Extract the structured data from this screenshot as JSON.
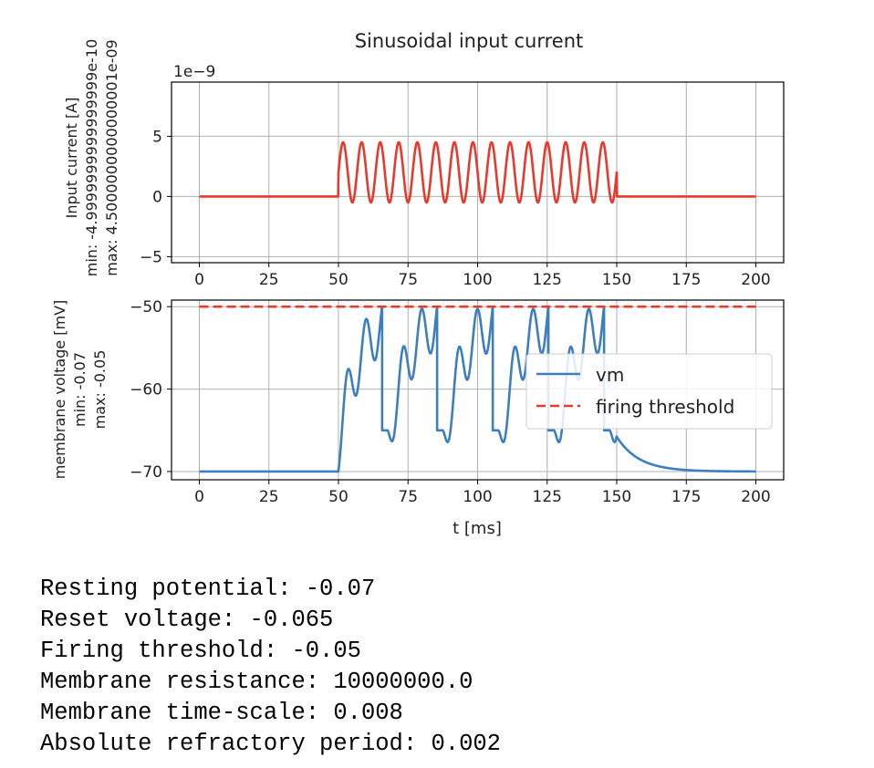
{
  "chart_data": [
    {
      "type": "line",
      "title": "Sinusoidal input current",
      "xlabel": "",
      "ylabel_lines": [
        "Input current [A]",
        "min: -4.9999999999999999e-10",
        "max: 4.5000000000000001e-09"
      ],
      "offset_text": "1e−9",
      "xlim": [
        -10,
        210
      ],
      "ylim": [
        -5.5,
        9.5
      ],
      "xticks": [
        0,
        25,
        50,
        75,
        100,
        125,
        150,
        175,
        200
      ],
      "xtick_labels": [
        "0",
        "25",
        "50",
        "75",
        "100",
        "125",
        "150",
        "175",
        "200"
      ],
      "yticks": [
        -5,
        0,
        5
      ],
      "ytick_labels": [
        "−5",
        "0",
        "5"
      ],
      "grid": true,
      "series": [
        {
          "color": "#e8392d",
          "signal": {
            "baseline": 0,
            "on_interval_ms": [
              50,
              150
            ],
            "offset": 2.0,
            "amplitude": 2.5,
            "frequency_khz": 0.15,
            "x_step": 0.1
          }
        }
      ]
    },
    {
      "type": "line",
      "xlabel": "t [ms]",
      "ylabel_lines": [
        "membrane voltage [mV]",
        "min: -0.07",
        "max: -0.05"
      ],
      "xlim": [
        -10,
        210
      ],
      "ylim": [
        -71,
        -49.2
      ],
      "xticks": [
        0,
        25,
        50,
        75,
        100,
        125,
        150,
        175,
        200
      ],
      "xtick_labels": [
        "0",
        "25",
        "50",
        "75",
        "100",
        "125",
        "150",
        "175",
        "200"
      ],
      "yticks": [
        -70,
        -60,
        -50
      ],
      "ytick_labels": [
        "−70",
        "−60",
        "−50"
      ],
      "grid": true,
      "legend": {
        "placement": "right",
        "entries": [
          "vm",
          "firing threshold"
        ]
      },
      "series": [
        {
          "name": "vm",
          "color": "#3d7ebf",
          "style": "solid",
          "model": {
            "v_rest_mV": -70,
            "v_reset_mV": -65,
            "v_threshold_mV": -50,
            "tau_ms": 8,
            "resistance_ohm": 10000000,
            "refractory_ms": 2,
            "dt_ms": 0.05
          }
        },
        {
          "name": "firing threshold",
          "color": "#e8392d",
          "style": "dashed",
          "value": -50
        }
      ]
    }
  ],
  "parameters": [
    "Resting potential: -0.07",
    "Reset voltage: -0.065",
    "Firing threshold: -0.05",
    "Membrane resistance: 10000000.0",
    "Membrane time-scale: 0.008",
    "Absolute refractory period: 0.002"
  ]
}
